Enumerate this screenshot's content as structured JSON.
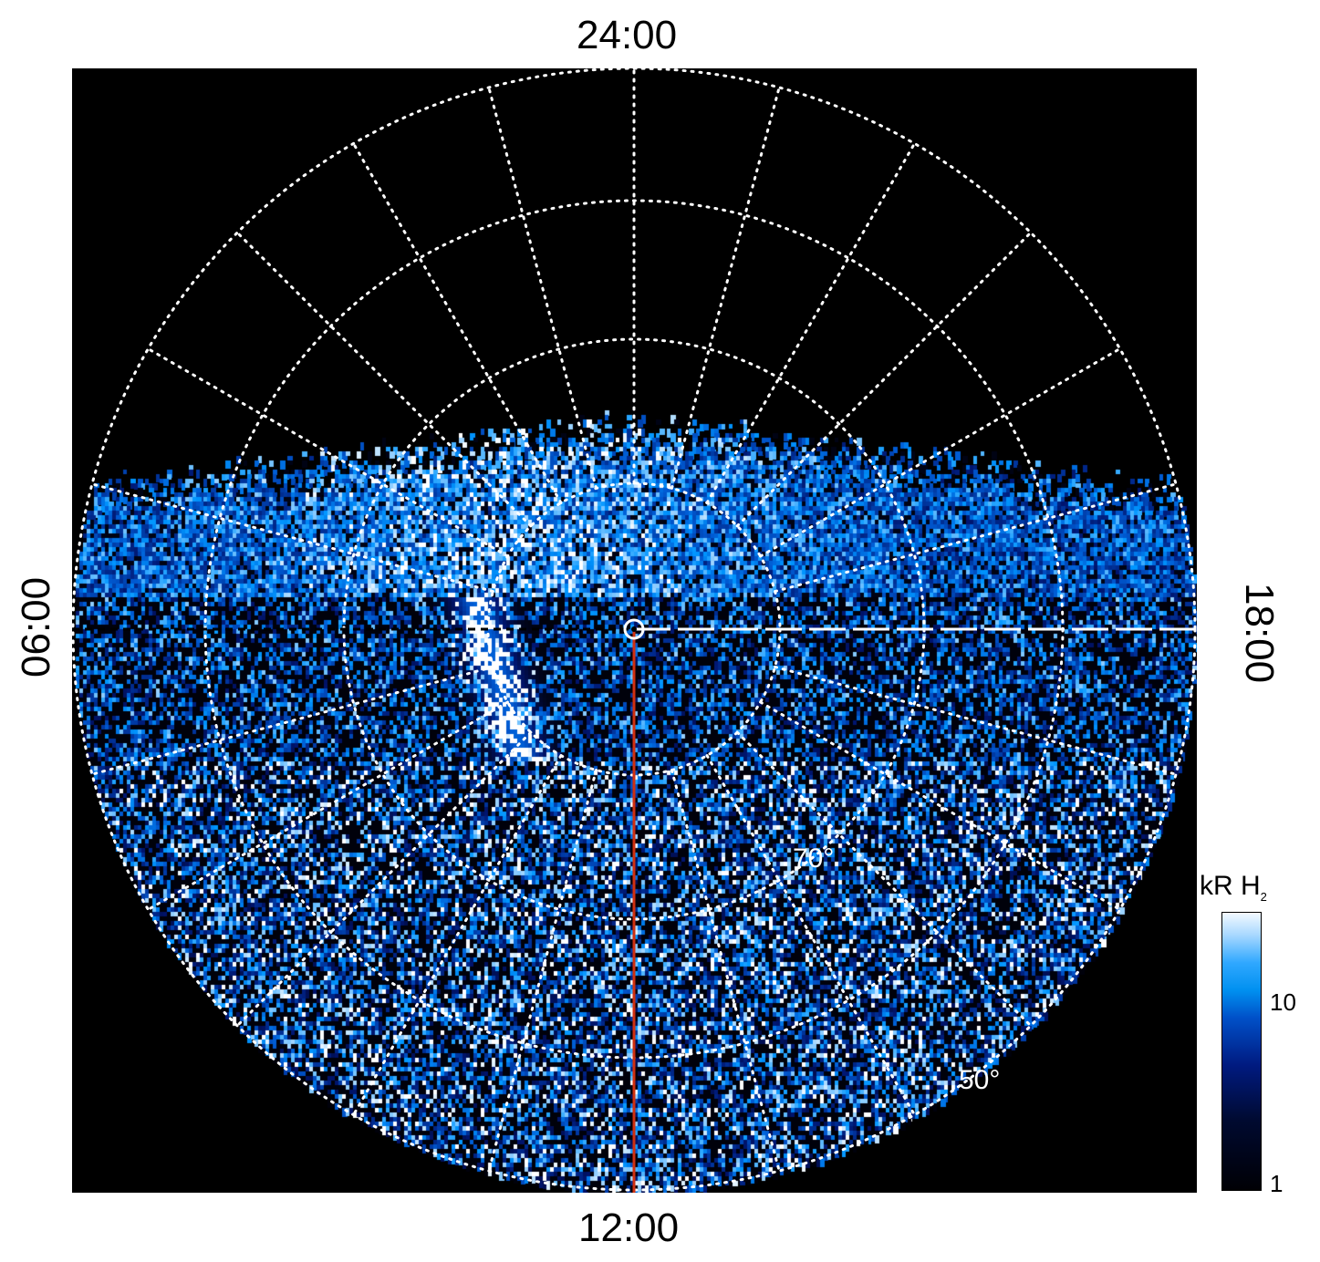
{
  "chart_data": {
    "type": "heatmap",
    "projection": "polar (north-pole view)",
    "local_time_labels": {
      "top": "24:00",
      "bottom": "12:00",
      "left": "06:00",
      "right": "18:00"
    },
    "latitude_labels": [
      "70°",
      "50°"
    ],
    "latitude_circles_deg": [
      80,
      70,
      60,
      50
    ],
    "meridian_spacing_hours": 1,
    "colorbar": {
      "label": "kR H",
      "label_subscript": "2",
      "scale": "log",
      "range": [
        1,
        25
      ],
      "ticks": [
        "1",
        "10"
      ]
    },
    "colors": {
      "background": "#000000",
      "grid": "#ffffff",
      "noon_line": "#d03010",
      "colormap": [
        "#000005",
        "#001a80",
        "#0090f0",
        "#ffffff"
      ]
    }
  }
}
